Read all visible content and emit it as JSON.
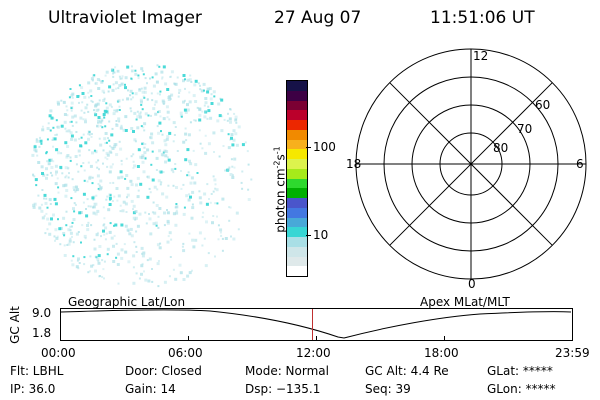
{
  "header": {
    "instrument": "Ultraviolet Imager",
    "date": "27 Aug 07",
    "time": "11:51:06 UT"
  },
  "colorbar": {
    "unit_label_base": "photon cm",
    "unit_label_sup1": "-2",
    "unit_label_mid": "s",
    "unit_label_sup2": "-1",
    "tick_labels": [
      "100",
      "10"
    ],
    "colors": [
      "#ffffff",
      "#dfe9ea",
      "#cfe6e9",
      "#a9dfe6",
      "#37d6d4",
      "#48a9d8",
      "#4378e1",
      "#4a55cb",
      "#00b000",
      "#2ed92e",
      "#a6ea1a",
      "#ddf34d",
      "#f6e800",
      "#f7b01d",
      "#f18a00",
      "#ec2700",
      "#bb002b",
      "#7b0033",
      "#3d0044",
      "#161248"
    ]
  },
  "polar": {
    "labels": [
      "12",
      "60",
      "70",
      "80",
      "18",
      "6",
      "0"
    ]
  },
  "timeline": {
    "left_label": "Geographic Lat/Lon",
    "right_label": "Apex MLat/MLT",
    "axis_title": "GC Alt",
    "ymax": "9.0",
    "ymin": "1.8",
    "ticks": [
      "00:00",
      "06:00",
      "12:00",
      "18:00",
      "23:59"
    ]
  },
  "status": {
    "flt": "Flt: LBHL",
    "door": "Door: Closed",
    "mode": "Mode: Normal",
    "gc_alt": "GC Alt: 4.4 Re",
    "glat": "GLat: *****",
    "ip": "IP: 36.0",
    "gain": "Gain: 14",
    "dsp": "Dsp: −135.1",
    "seq": "Seq: 39",
    "glon": "GLon: *****"
  },
  "colors": {
    "speckle_primary": "#37d6d4",
    "speckle_secondary": "#a9dfe6",
    "marker": "#c03030"
  }
}
